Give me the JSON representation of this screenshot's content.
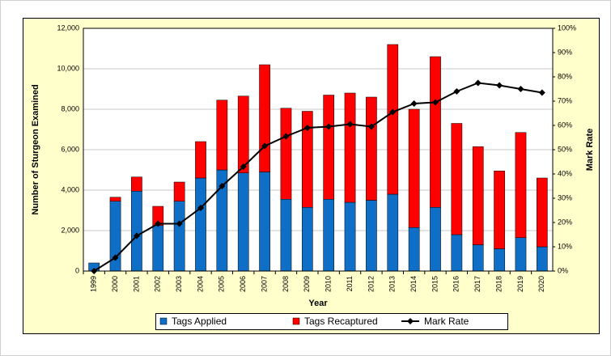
{
  "chart_data": {
    "type": "bar",
    "stacked": true,
    "x_label": "Year",
    "y_label": "Number of Sturgeon Examined",
    "y2_label": "Mark Rate",
    "categories": [
      "1999",
      "2000",
      "2001",
      "2002",
      "2003",
      "2004",
      "2005",
      "2006",
      "2007",
      "2008",
      "2009",
      "2010",
      "2011",
      "2012",
      "2013",
      "2014",
      "2015",
      "2016",
      "2017",
      "2018",
      "2019",
      "2020"
    ],
    "series": [
      {
        "name": "Tags Applied",
        "color": "#0f6fc6",
        "type": "bar",
        "values": [
          400,
          3450,
          3950,
          2250,
          3450,
          4600,
          5000,
          4850,
          4900,
          3550,
          3150,
          3550,
          3400,
          3500,
          3800,
          2150,
          3150,
          1800,
          1300,
          1100,
          1650,
          1200
        ]
      },
      {
        "name": "Tags Recaptured",
        "color": "#ff0000",
        "type": "bar",
        "values": [
          0,
          200,
          700,
          950,
          950,
          1800,
          3450,
          3800,
          5300,
          4500,
          4750,
          5150,
          5400,
          5100,
          7400,
          5850,
          7450,
          5500,
          4850,
          3850,
          5200,
          3400
        ]
      },
      {
        "name": "Mark Rate",
        "color": "#000000",
        "type": "line",
        "axis": "y2",
        "values": [
          0,
          5.5,
          14.5,
          19.5,
          19.5,
          26,
          35,
          43,
          51.5,
          55.5,
          59,
          59.5,
          60.5,
          59.5,
          65.5,
          69,
          69.5,
          74,
          77.5,
          76.5,
          75,
          73.5
        ]
      }
    ],
    "ylim": [
      0,
      12000
    ],
    "yticks": [
      0,
      {
        "value": 2000,
        "label": "2,000"
      },
      {
        "value": 4000,
        "label": "4,000"
      },
      {
        "value": 6000,
        "label": "6,000"
      },
      {
        "value": 8000,
        "label": "8,000"
      },
      {
        "value": 10000,
        "label": "10,000"
      },
      {
        "value": 12000,
        "label": "12,000"
      }
    ],
    "y2lim": [
      0,
      100
    ],
    "y2ticks": [
      {
        "value": 0,
        "label": "0%"
      },
      {
        "value": 10,
        "label": "10%"
      },
      {
        "value": 20,
        "label": "20%"
      },
      {
        "value": 30,
        "label": "30%"
      },
      {
        "value": 40,
        "label": "40%"
      },
      {
        "value": 50,
        "label": "50%"
      },
      {
        "value": 60,
        "label": "60%"
      },
      {
        "value": 70,
        "label": "70%"
      },
      {
        "value": 80,
        "label": "80%"
      },
      {
        "value": 90,
        "label": "90%"
      },
      {
        "value": 100,
        "label": "100%"
      }
    ],
    "grid": true,
    "legend": "bottom"
  }
}
